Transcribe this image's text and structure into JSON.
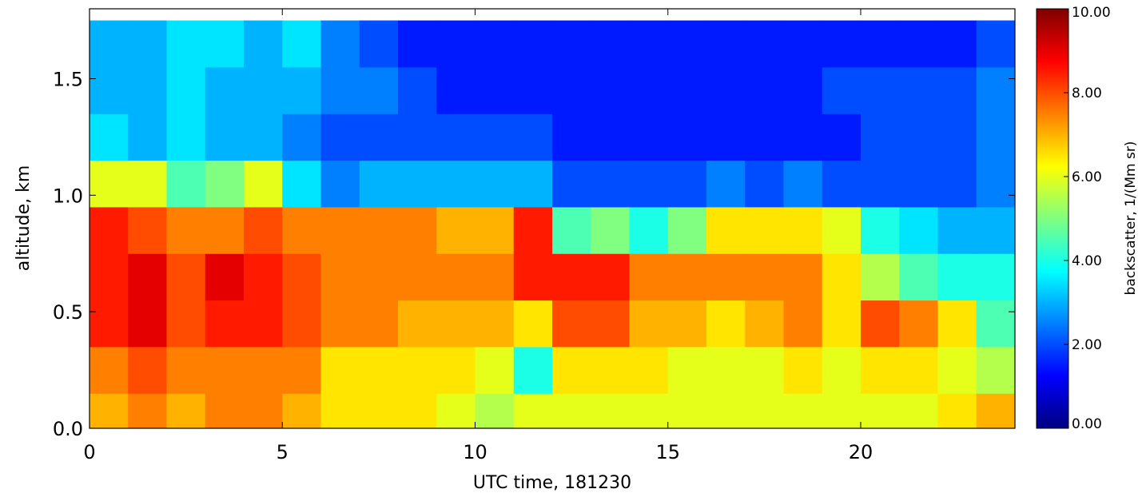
{
  "chart_data": {
    "type": "heatmap",
    "title": "",
    "xlabel": "UTC time, 181230",
    "ylabel": "altitude, km",
    "xlim": [
      0,
      24
    ],
    "ylim": [
      0,
      1.8
    ],
    "x_ticks": [
      "0",
      "5",
      "10",
      "15",
      "20"
    ],
    "x_tick_values": [
      0,
      5,
      10,
      15,
      20
    ],
    "y_ticks": [
      "0.0",
      "0.5",
      "1.0",
      "1.5"
    ],
    "y_tick_values": [
      0,
      0.5,
      1.0,
      1.5
    ],
    "colorbar": {
      "label": "backscatter, 1/(Mm sr)",
      "range": [
        0,
        10
      ],
      "ticks": [
        "0.00",
        "2.00",
        "4.00",
        "6.00",
        "8.00",
        "10.00"
      ],
      "tick_values": [
        0,
        2,
        4,
        6,
        8,
        10
      ],
      "colormap": "jet",
      "saturated_color": "#ffffff",
      "invalid_color": "#000000"
    },
    "time_hours": [
      0.5,
      1.5,
      2.5,
      3.5,
      4.5,
      5.5,
      6.5,
      7.5,
      8.5,
      9.5,
      10.5,
      11.5,
      12.5,
      13.5,
      14.5,
      15.5,
      16.5,
      17.5,
      18.5,
      19.5,
      20.5,
      21.5,
      22.5,
      23.5
    ],
    "altitude_km": [
      0.05,
      0.25,
      0.45,
      0.65,
      0.85,
      1.05,
      1.25,
      1.45,
      1.65
    ],
    "values": [
      [
        7.0,
        7.5,
        7.0,
        7.5,
        7.5,
        7.0,
        6.5,
        6.5,
        6.5,
        6.0,
        5.5,
        6.0,
        6.0,
        6.0,
        6.0,
        6.0,
        6.0,
        6.0,
        6.0,
        6.0,
        6.0,
        6.0,
        6.5,
        7.0
      ],
      [
        7.5,
        8.0,
        7.5,
        7.5,
        7.5,
        7.5,
        6.5,
        6.5,
        6.5,
        6.5,
        6.0,
        4.0,
        6.5,
        6.5,
        6.5,
        6.0,
        6.0,
        6.0,
        6.5,
        6.0,
        6.5,
        6.5,
        6.0,
        5.5
      ],
      [
        8.5,
        9.0,
        8.0,
        8.5,
        8.5,
        8.0,
        7.5,
        7.5,
        7.0,
        7.0,
        7.0,
        6.5,
        8.0,
        8.0,
        7.0,
        7.0,
        6.5,
        7.0,
        7.5,
        6.5,
        8.0,
        7.5,
        6.5,
        4.5
      ],
      [
        8.5,
        9.0,
        8.0,
        9.0,
        8.5,
        8.0,
        7.5,
        7.5,
        7.5,
        7.5,
        7.5,
        8.5,
        8.5,
        8.5,
        7.5,
        7.5,
        7.5,
        7.5,
        7.5,
        6.5,
        5.5,
        4.5,
        4.0,
        4.0
      ],
      [
        8.5,
        8.0,
        7.5,
        7.5,
        8.0,
        7.5,
        7.5,
        7.5,
        7.5,
        7.0,
        7.0,
        8.5,
        4.5,
        5.0,
        4.0,
        5.0,
        6.5,
        6.5,
        6.5,
        6.0,
        4.0,
        3.5,
        3.0,
        3.0
      ],
      [
        6.0,
        6.0,
        4.5,
        5.0,
        6.0,
        3.5,
        2.5,
        3.0,
        3.0,
        3.0,
        3.0,
        3.0,
        2.0,
        2.0,
        2.0,
        2.0,
        2.5,
        2.0,
        2.5,
        2.0,
        2.0,
        2.0,
        2.0,
        2.5
      ],
      [
        3.5,
        3.0,
        3.5,
        3.0,
        3.0,
        2.5,
        2.0,
        2.0,
        2.0,
        2.0,
        2.0,
        2.0,
        1.5,
        1.5,
        1.5,
        1.5,
        1.5,
        1.5,
        1.5,
        1.5,
        2.0,
        2.0,
        2.0,
        2.5
      ],
      [
        3.0,
        3.0,
        3.5,
        3.0,
        3.0,
        3.0,
        2.5,
        2.5,
        2.0,
        1.5,
        1.5,
        1.5,
        1.5,
        1.5,
        1.5,
        1.5,
        1.5,
        1.5,
        1.5,
        2.0,
        2.0,
        2.0,
        2.0,
        2.5
      ],
      [
        3.0,
        3.0,
        3.5,
        3.5,
        3.0,
        3.5,
        2.5,
        2.0,
        1.5,
        1.5,
        1.5,
        1.5,
        1.5,
        1.5,
        1.5,
        1.5,
        1.5,
        1.5,
        1.5,
        1.5,
        1.5,
        1.5,
        1.5,
        2.0
      ]
    ],
    "grid": false,
    "legend": "colorbar-right"
  }
}
